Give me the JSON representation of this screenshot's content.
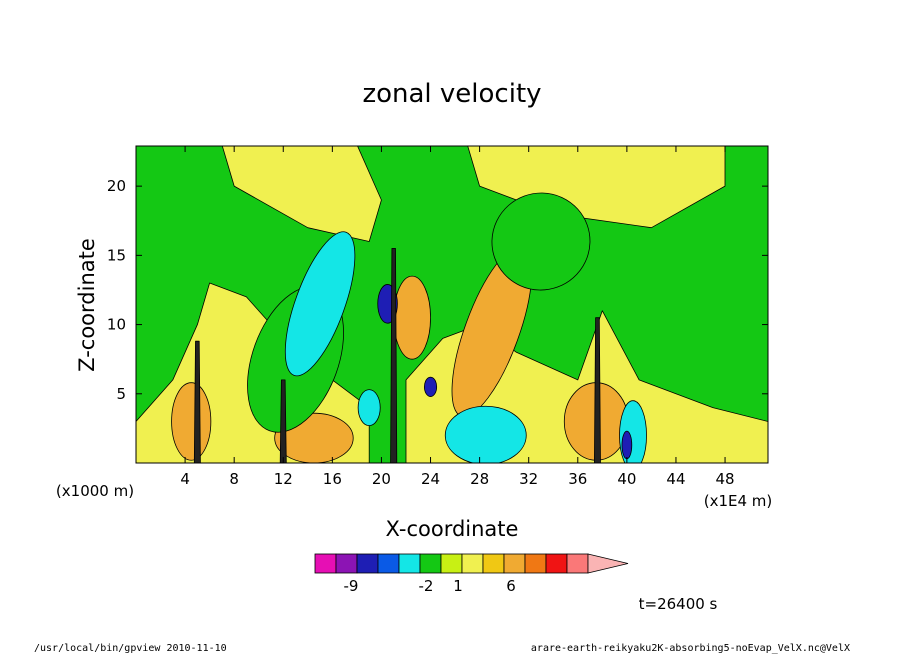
{
  "chart_data": {
    "type": "heatmap",
    "title": "zonal velocity",
    "xlabel": "X-coordinate",
    "ylabel": "Z-coordinate",
    "x_unit_left": "(x1000 m)",
    "x_unit_right": "(x1E4 m)",
    "xlim": [
      0,
      51.5
    ],
    "ylim": [
      0,
      22.9
    ],
    "x_ticks": [
      4,
      8,
      12,
      16,
      20,
      24,
      28,
      32,
      36,
      40,
      44,
      48
    ],
    "y_ticks": [
      5,
      10,
      15,
      20
    ],
    "colorbar": {
      "bins": [
        {
          "color": "#e60fb4"
        },
        {
          "color": "#8c14b4"
        },
        {
          "color": "#1e1eb4"
        },
        {
          "color": "#0a5ae6"
        },
        {
          "color": "#14e6e6"
        },
        {
          "color": "#14c814"
        },
        {
          "color": "#c8f014"
        },
        {
          "color": "#f0f050"
        },
        {
          "color": "#f0c814"
        },
        {
          "color": "#f0aa32"
        },
        {
          "color": "#f07814"
        },
        {
          "color": "#f01414"
        },
        {
          "color": "#fa7878"
        }
      ],
      "extend_color": "#fab4b4",
      "labels": [
        "-9",
        "-2",
        "1",
        "6"
      ]
    },
    "colors": {
      "background_green": "#14c814",
      "yellow": "#f0f050",
      "orange": "#f0aa32",
      "cyan": "#14e6e6",
      "blue": "#1e1eb4"
    }
  },
  "time_label": "t=26400 s",
  "footer_left": "/usr/local/bin/gpview  2010-11-10",
  "footer_right": "arare-earth-reikyaku2K-absorbing5-noEvap_VelX.nc@VelX"
}
